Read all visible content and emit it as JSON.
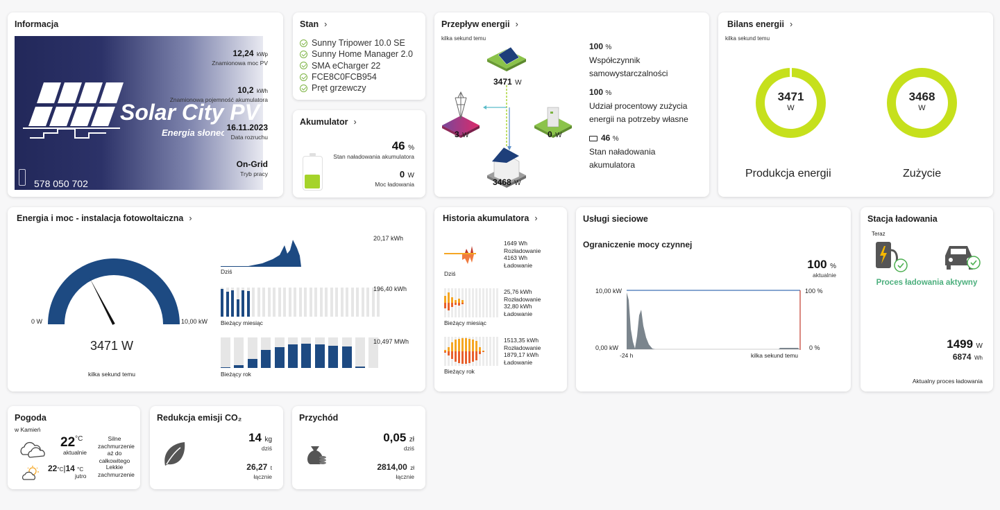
{
  "info": {
    "title": "Informacja",
    "pv_power_value": "12,24",
    "pv_power_unit": "kWp",
    "pv_power_label": "Znamionowa moc PV",
    "battery_capacity_value": "10,2",
    "battery_capacity_unit": "kWh",
    "battery_capacity_label": "Znamionowa pojemność akumulatora",
    "start_date_value": "16.11.2023",
    "start_date_label": "Data rozruchu",
    "mode_value": "On-Grid",
    "mode_label": "Tryb pracy",
    "logo_name": "Solar City PV",
    "logo_slogan": "Energia słoneczna",
    "phone": "578 050 702"
  },
  "status": {
    "title": "Stan",
    "devices": [
      "Sunny Tripower 10.0 SE",
      "Sunny Home Manager 2.0",
      "SMA eCharger 22",
      "FCE8C0FCB954",
      "Pręt grzewczy"
    ]
  },
  "battery": {
    "title": "Akumulator",
    "charge_value": "46",
    "charge_unit": "%",
    "charge_label": "Stan naładowania akumulatora",
    "charge_level": 0.46,
    "power_value": "0",
    "power_unit": "W",
    "power_label": "Moc ładowania"
  },
  "flow": {
    "title": "Przepływ energii",
    "updated": "kilka sekund temu",
    "pv_value": "3471",
    "pv_unit": "W",
    "grid_value": "3",
    "grid_unit": "W",
    "battery_value": "0",
    "battery_unit": "W",
    "house_value": "3468",
    "house_unit": "W",
    "self_sufficiency_value": "100",
    "self_sufficiency_unit": "%",
    "self_sufficiency_label": "Współczynnik samowystarczalności",
    "self_consumption_value": "100",
    "self_consumption_unit": "%",
    "self_consumption_label": "Udział procentowy zużycia energii na potrzeby własne",
    "soc_value": "46",
    "soc_unit": "%",
    "soc_label": "Stan naładowania akumulatora"
  },
  "balance": {
    "title": "Bilans energii",
    "updated": "kilka sekund temu",
    "production_value": "3471",
    "production_unit": "W",
    "production_label": "Produkcja energii",
    "consumption_value": "3468",
    "consumption_unit": "W",
    "consumption_label": "Zużycie",
    "color": "#c6e01c"
  },
  "pv_energy": {
    "title": "Energia i moc - instalacja fotowoltaiczna",
    "gauge_min": "0 W",
    "gauge_max": "10,00 kW",
    "gauge_value": "3471 W",
    "gauge_fraction": 0.347,
    "updated": "kilka sekund temu",
    "today_value": "20,17 kWh",
    "today_label": "Dziś",
    "month_value": "196,40 kWh",
    "month_label": "Bieżący miesiąc",
    "year_value": "10,497 MWh",
    "year_label": "Bieżący rok",
    "color": "#1d4a82"
  },
  "bat_history": {
    "title": "Historia akumulatora",
    "today_discharge": "1649 Wh",
    "today_discharge_label": "Rozładowanie",
    "today_charge": "4163 Wh",
    "today_charge_label": "Ładowanie",
    "today_label": "Dziś",
    "month_discharge": "25,76 kWh",
    "month_discharge_label": "Rozładowanie",
    "month_charge": "32,80 kWh",
    "month_charge_label": "Ładowanie",
    "month_label": "Bieżący miesiąc",
    "year_discharge": "1513,35 kWh",
    "year_discharge_label": "Rozładowanie",
    "year_charge": "1879,17 kWh",
    "year_charge_label": "Ładowanie",
    "year_label": "Bieżący rok"
  },
  "grid_services": {
    "title": "Usługi sieciowe",
    "subtitle": "Ograniczenie mocy czynnej",
    "limit_value": "100",
    "limit_unit": "%",
    "limit_label": "aktualnie",
    "y_top": "10,00 kW",
    "y_bottom": "0,00 kW",
    "y2_top": "100 %",
    "y2_bottom": "0 %",
    "x_start": "-24 h",
    "x_end": "kilka sekund temu"
  },
  "charging": {
    "title": "Stacja ładowania",
    "now_label": "Teraz",
    "status": "Proces ładowania aktywny",
    "power_value": "1499",
    "power_unit": "W",
    "energy_value": "6874",
    "energy_unit": "Wh",
    "footer": "Aktualny proces ładowania",
    "status_color": "#4caf7d"
  },
  "weather": {
    "title": "Pogoda",
    "location": "w Kamień",
    "temp_value": "22",
    "temp_unit": "°C",
    "temp_label": "aktualnie",
    "desc_now": "Silne zachmurzenie aż do całkowitego",
    "tomorrow_max": "22",
    "tomorrow_min": "14",
    "tomorrow_unit": "°C",
    "tomorrow_label": "jutro",
    "desc_tomorrow": "Lekkie zachmurzenie"
  },
  "co2": {
    "title": "Redukcja emisji CO₂",
    "today_value": "14",
    "today_unit": "kg",
    "today_label": "dziś",
    "total_value": "26,27",
    "total_unit": "t",
    "total_label": "łącznie"
  },
  "revenue": {
    "title": "Przychód",
    "today_value": "0,05",
    "today_unit": "zł",
    "today_label": "dziś",
    "total_value": "2814,00",
    "total_unit": "zł",
    "total_label": "łącznie"
  }
}
